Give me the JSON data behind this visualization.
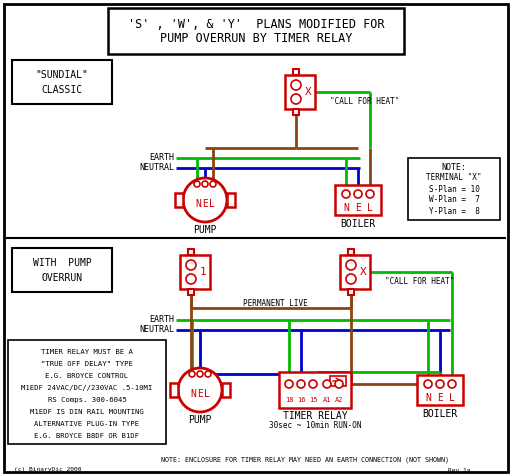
{
  "bg_color": "#ffffff",
  "border_color": "#000000",
  "red_color": "#cc0000",
  "green_color": "#00bb00",
  "blue_color": "#0000cc",
  "brown_color": "#8B4513",
  "title_line1": "'S' , 'W', & 'Y'  PLANS MODIFIED FOR",
  "title_line2": "PUMP OVERRUN BY TIMER RELAY",
  "note_lines": [
    "NOTE:",
    "TERMINAL \"X\"",
    "S-Plan = 10",
    "W-Plan =  7",
    "Y-Plan =  8"
  ],
  "timer_info": [
    "TIMER RELAY MUST BE A",
    "\"TRUE OFF DELAY\" TYPE",
    "E.G. BROYCE CONTROL",
    "M1EDF 24VAC/DC//230VAC .5-10MI",
    "RS Comps. 300-6045",
    "M1EDF IS DIN RAIL MOUNTING",
    "ALTERNATIVE PLUG-IN TYPE",
    "E.G. BROYCE B8DF OR B1DF"
  ],
  "bottom_note": "NOTE: ENCLOSURE FOR TIMER RELAY MAY NEED AN EARTH CONNECTION (NOT SHOWN)"
}
